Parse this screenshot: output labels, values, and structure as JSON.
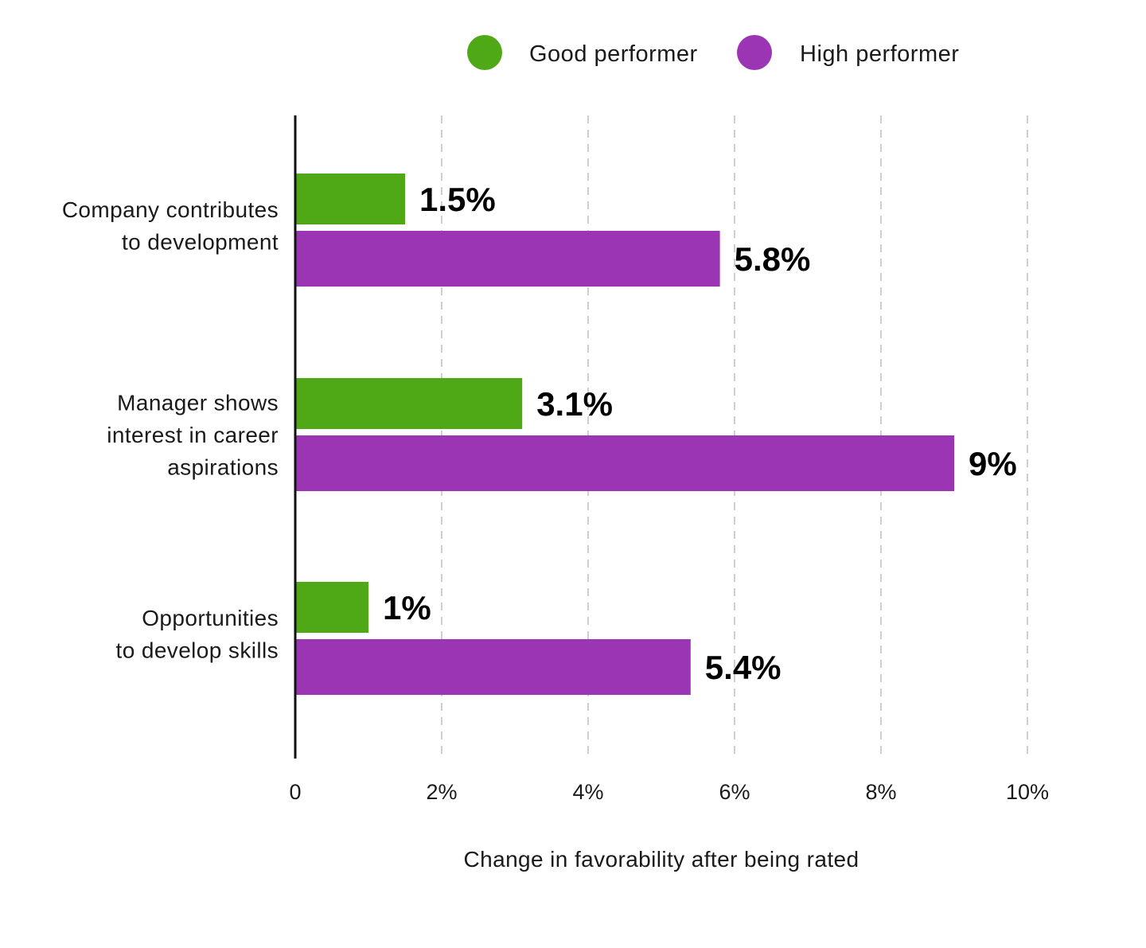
{
  "chart_data": {
    "type": "bar",
    "orientation": "horizontal",
    "categories": [
      [
        "Company contributes",
        "to development"
      ],
      [
        "Manager shows",
        "interest in career",
        "aspirations"
      ],
      [
        "Opportunities",
        "to develop skills"
      ]
    ],
    "series": [
      {
        "name": "Good performer",
        "color": "#4fa916",
        "values": [
          1.5,
          3.1,
          1
        ],
        "labels": [
          "1.5%",
          "3.1%",
          "1%"
        ]
      },
      {
        "name": "High performer",
        "color": "#9b35b3",
        "values": [
          5.8,
          9,
          5.4
        ],
        "labels": [
          "5.8%",
          "9%",
          "5.4%"
        ]
      }
    ],
    "xlabel": "Change in favorability after being rated",
    "ylabel": "",
    "xlim": [
      0,
      10
    ],
    "xticks": [
      0,
      2,
      4,
      6,
      8,
      10
    ],
    "xtick_labels": [
      "0",
      "2%",
      "4%",
      "6%",
      "8%",
      "10%"
    ],
    "grid": "vertical dashed",
    "legend": "top-right"
  }
}
